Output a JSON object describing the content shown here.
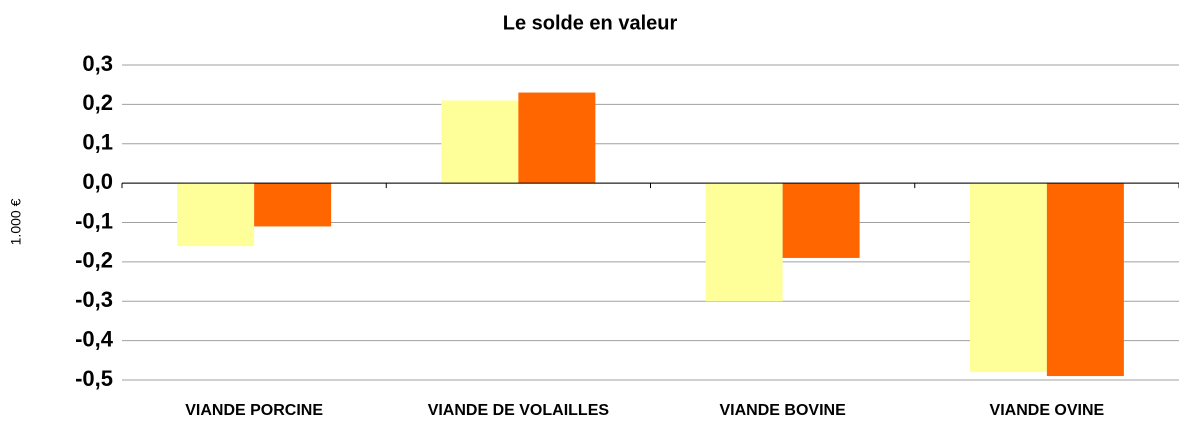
{
  "chart_data": {
    "type": "bar",
    "title": "Le solde en valeur",
    "y_label": "1.000 €",
    "categories": [
      "VIANDE PORCINE",
      "VIANDE DE VOLAILLES",
      "VIANDE BOVINE",
      "VIANDE OVINE"
    ],
    "series": [
      {
        "color": "#ffff99",
        "values": [
          -0.16,
          0.21,
          -0.3,
          -0.48
        ]
      },
      {
        "color": "#ff6600",
        "values": [
          -0.11,
          0.23,
          -0.19,
          -0.49
        ]
      }
    ],
    "ylim": [
      -0.5,
      0.3
    ],
    "yticks": [
      {
        "value": -0.5,
        "label": "-0,5"
      },
      {
        "value": -0.4,
        "label": "-0,4"
      },
      {
        "value": -0.3,
        "label": "-0,3"
      },
      {
        "value": -0.2,
        "label": "-0,2"
      },
      {
        "value": -0.1,
        "label": "-0,1"
      },
      {
        "value": 0,
        "label": "0,0"
      },
      {
        "value": 0.1,
        "label": "0,1"
      },
      {
        "value": 0.2,
        "label": "0,2"
      },
      {
        "value": 0.3,
        "label": "0,3"
      }
    ],
    "grid": true
  }
}
